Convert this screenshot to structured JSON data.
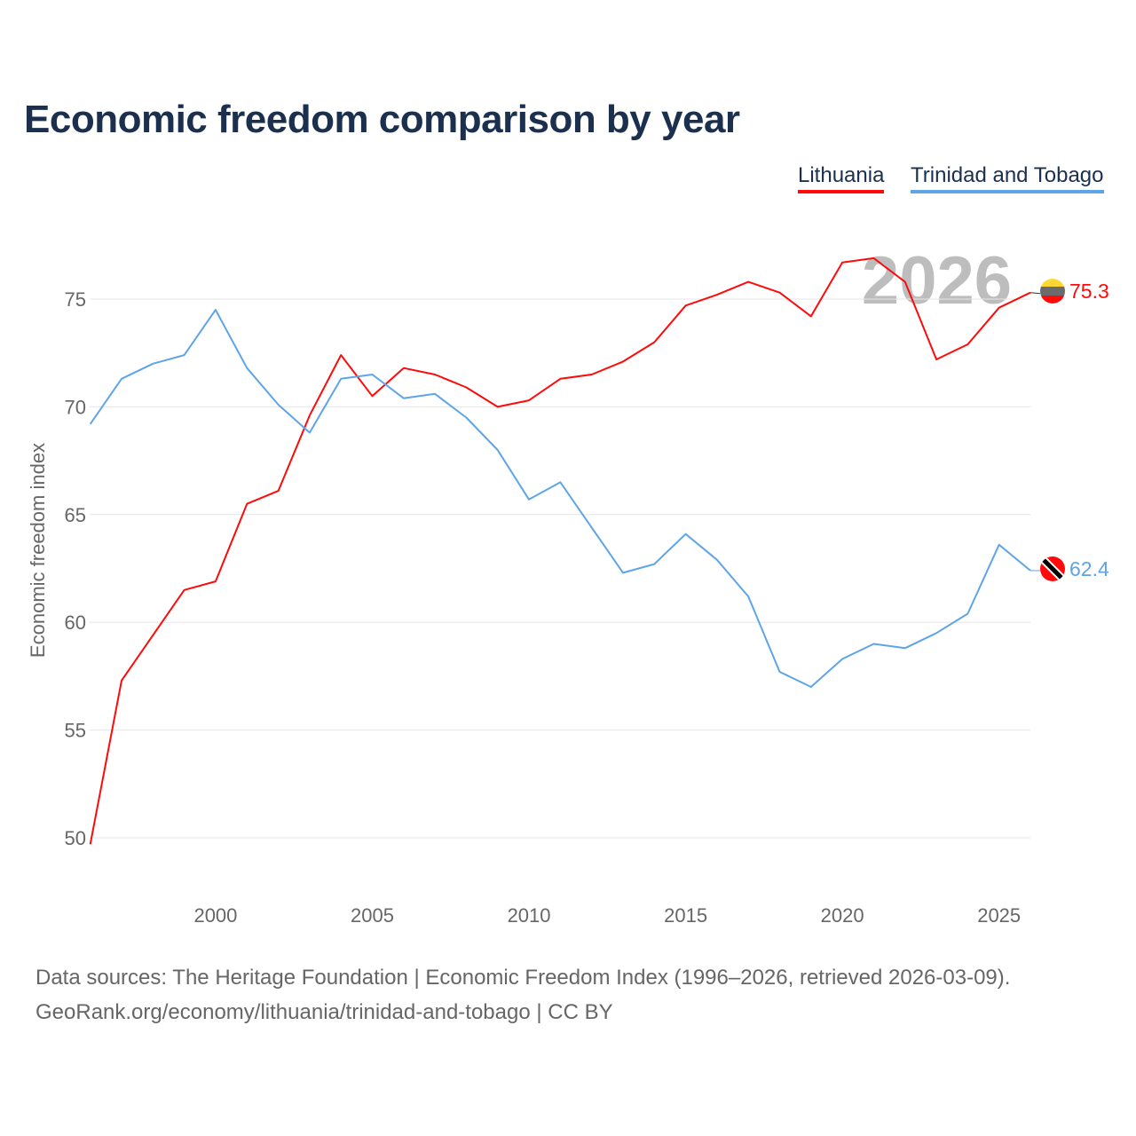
{
  "title": "Economic freedom comparison by year",
  "watermark_year": "2026",
  "footer": {
    "line1": "Data sources: The Heritage Foundation | Economic Freedom Index (1996–2026, retrieved 2026-03-09).",
    "line2": "GeoRank.org/economy/lithuania/trinidad-and-tobago | CC BY"
  },
  "chart_data": {
    "type": "line",
    "title": "Economic freedom comparison by year",
    "xlabel": "",
    "ylabel": "Economic freedom index",
    "xlim": [
      1996,
      2026
    ],
    "ylim": [
      47,
      78
    ],
    "xticks": [
      2000,
      2005,
      2010,
      2015,
      2020,
      2025
    ],
    "yticks": [
      50,
      55,
      60,
      65,
      70,
      75
    ],
    "grid": true,
    "legend": "top-right",
    "x": [
      1996,
      1997,
      1998,
      1999,
      2000,
      2001,
      2002,
      2003,
      2004,
      2005,
      2006,
      2007,
      2008,
      2009,
      2010,
      2011,
      2012,
      2013,
      2014,
      2015,
      2016,
      2017,
      2018,
      2019,
      2020,
      2021,
      2022,
      2023,
      2024,
      2025,
      2026
    ],
    "series": [
      {
        "name": "Lithuania",
        "color": "#ff0a0a",
        "end_label": "75.3",
        "values": [
          49.7,
          57.3,
          59.4,
          61.5,
          61.9,
          65.5,
          66.1,
          69.6,
          72.4,
          70.5,
          71.8,
          71.5,
          70.9,
          70.0,
          70.3,
          71.3,
          71.5,
          72.1,
          73.0,
          74.7,
          75.2,
          75.8,
          75.3,
          74.2,
          76.7,
          76.9,
          75.8,
          72.2,
          72.9,
          74.6,
          75.3
        ]
      },
      {
        "name": "Trinidad and Tobago",
        "color": "#5ea4e8",
        "end_label": "62.4",
        "values": [
          69.2,
          71.3,
          72.0,
          72.4,
          74.5,
          71.8,
          70.1,
          68.8,
          71.3,
          71.5,
          70.4,
          70.6,
          69.5,
          68.0,
          65.7,
          66.5,
          64.4,
          62.3,
          62.7,
          64.1,
          62.9,
          61.2,
          57.7,
          57.0,
          58.3,
          59.0,
          58.8,
          59.5,
          60.4,
          63.6,
          62.4
        ]
      }
    ]
  }
}
